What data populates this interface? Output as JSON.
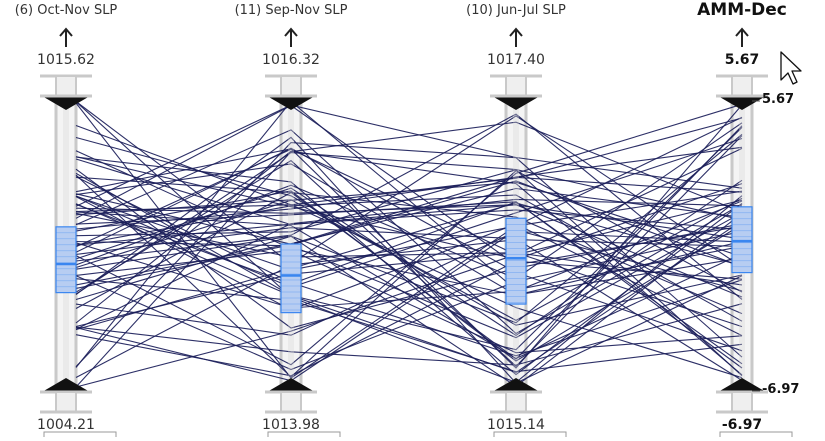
{
  "axes": [
    {
      "title": "(6) Oct-Nov SLP",
      "max_label": "1015.62",
      "min_label": "1004.21",
      "bold": false,
      "box": {
        "median": 0.43,
        "q1": 0.33,
        "q3": 0.56
      }
    },
    {
      "title": "(11) Sep-Nov SLP",
      "max_label": "1016.32",
      "min_label": "1013.98",
      "bold": false,
      "box": {
        "median": 0.39,
        "q1": 0.26,
        "q3": 0.5
      }
    },
    {
      "title": "(10) Jun-Jul SLP",
      "max_label": "1017.40",
      "min_label": "1015.14",
      "bold": false,
      "box": {
        "median": 0.45,
        "q1": 0.29,
        "q3": 0.59
      }
    },
    {
      "title": "AMM-Dec",
      "max_label": "5.67",
      "min_label": "-6.97",
      "bold": true,
      "box": {
        "median": 0.51,
        "q1": 0.4,
        "q3": 0.63
      }
    }
  ],
  "filter_range": {
    "upper": "5.67",
    "lower": "-6.97"
  },
  "colors": {
    "lines": "#1b1e5a",
    "box_fill": "#b7cdf2",
    "box_stroke": "#3a86f0",
    "axis": "#c9c9c9"
  },
  "icons": {
    "arrow": "up-arrow-icon",
    "range_handle": "triangle-handle-icon",
    "cursor": "mouse-pointer-icon"
  }
}
